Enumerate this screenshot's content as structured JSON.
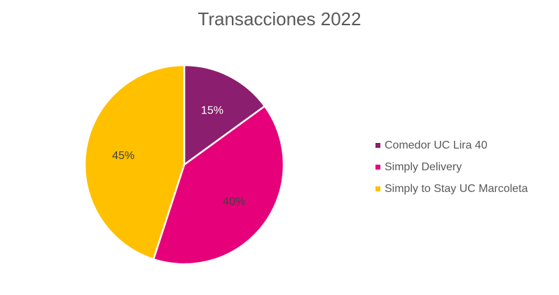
{
  "chart_data": {
    "type": "pie",
    "title": "Transacciones 2022",
    "slices": [
      {
        "label": "Comedor UC Lira 40",
        "value": 15,
        "display": "15%",
        "color": "#8B1E6E",
        "label_color": "#ffffff"
      },
      {
        "label": "Simply Delivery",
        "value": 40,
        "display": "40%",
        "color": "#E6007A",
        "label_color": "#404040"
      },
      {
        "label": "Simply to Stay UC Marcoleta",
        "value": 45,
        "display": "45%",
        "color": "#FFC000",
        "label_color": "#404040"
      }
    ],
    "legend_position": "right"
  }
}
